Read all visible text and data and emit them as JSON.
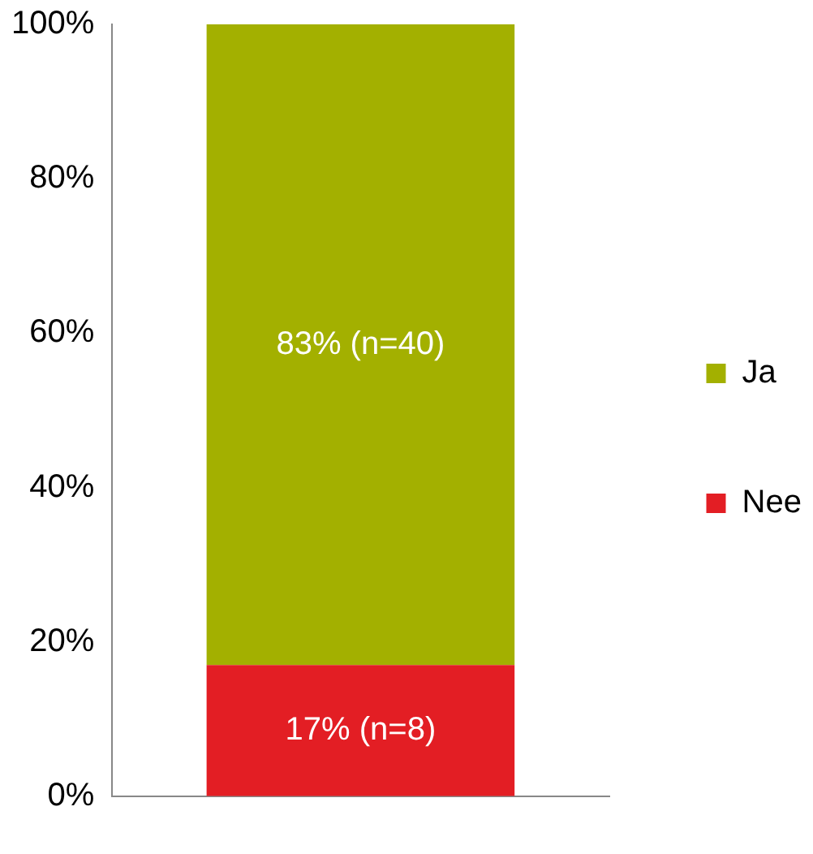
{
  "chart_data": {
    "type": "bar",
    "stacked": true,
    "categories": [
      null
    ],
    "series": [
      {
        "name": "Nee",
        "color": "#e31e24",
        "values": [
          17
        ],
        "value_labels": [
          "17% (n=8)"
        ]
      },
      {
        "name": "Ja",
        "color": "#a3b000",
        "values": [
          83
        ],
        "value_labels": [
          "83% (n=40)"
        ]
      }
    ],
    "ylim": [
      0,
      100
    ],
    "yticks": [
      {
        "value": 0,
        "label": "0%"
      },
      {
        "value": 20,
        "label": "20%"
      },
      {
        "value": 40,
        "label": "40%"
      },
      {
        "value": 60,
        "label": "60%"
      },
      {
        "value": 80,
        "label": "80%"
      },
      {
        "value": 100,
        "label": "100%"
      }
    ],
    "grid": false,
    "legend": "right"
  }
}
